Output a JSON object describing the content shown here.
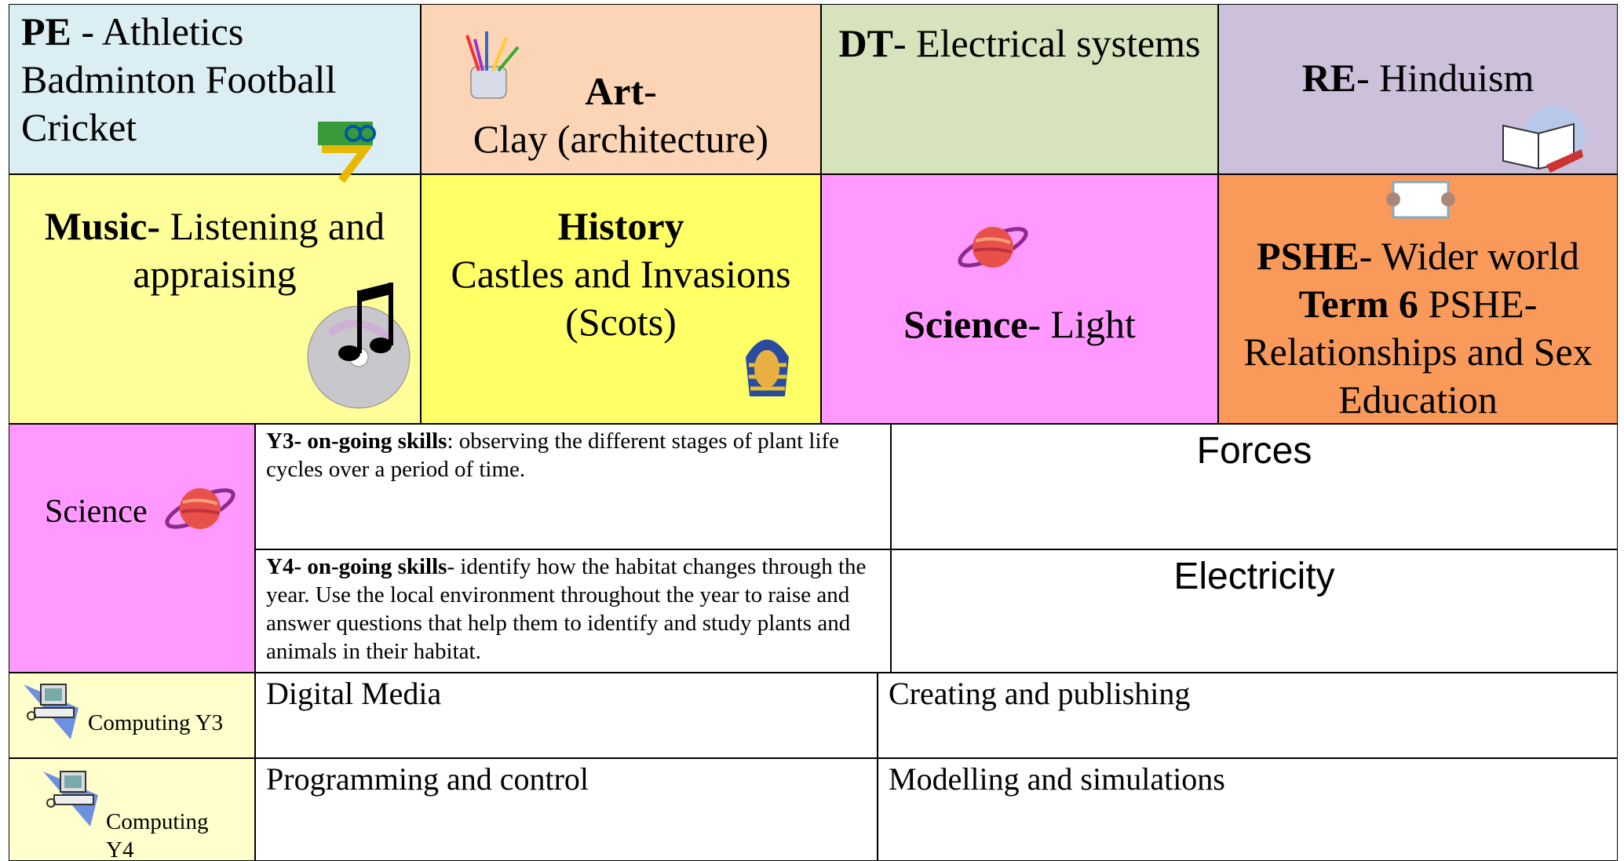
{
  "subjects": [
    {
      "parts": [
        {
          "text": "PE",
          "bold": true
        },
        {
          "text": " - Athletics Badminton Football Cricket",
          "bold": false
        }
      ]
    },
    {
      "parts": [
        {
          "text": "Art",
          "bold": true
        },
        {
          "text": "-",
          "bold": false
        },
        {
          "text": "Clay (architecture)",
          "bold": false
        }
      ]
    },
    {
      "parts": [
        {
          "text": "DT",
          "bold": true
        },
        {
          "text": "- Electrical systems",
          "bold": false
        }
      ]
    },
    {
      "parts": [
        {
          "text": "RE",
          "bold": true
        },
        {
          "text": "- Hinduism",
          "bold": false
        }
      ]
    },
    {
      "parts": [
        {
          "text": "Music-",
          "bold": true
        },
        {
          "text": " Listening and appraising",
          "bold": false
        }
      ]
    },
    {
      "parts": [
        {
          "text": "History",
          "bold": true
        },
        {
          "text": "Castles and Invasions (Scots)",
          "bold": false
        }
      ]
    },
    {
      "parts": [
        {
          "text": "Science",
          "bold": true
        },
        {
          "text": "- Light",
          "bold": false
        }
      ]
    },
    {
      "parts": [
        {
          "text": "PSHE",
          "bold": true
        },
        {
          "text": "- Wider world ",
          "bold": false
        },
        {
          "text": "Term 6",
          "bold": true
        },
        {
          "text": " PSHE- Relationships and Sex Education",
          "bold": false
        }
      ]
    }
  ],
  "science": {
    "label": "Science",
    "rows": [
      {
        "parts": [
          {
            "text": "Y3- on-going skills",
            "bold": true
          },
          {
            "text": ": observing the different stages of plant life cycles over a period of time.",
            "bold": false
          }
        ],
        "topic": "Forces"
      },
      {
        "parts": [
          {
            "text": "Y4- on-going skills",
            "bold": true
          },
          {
            "text": "- identify how the habitat changes through the year. Use the local environment throughout the year to raise and answer questions that help them to identify and study plants and animals in their habitat.",
            "bold": false
          }
        ],
        "topic": "Electricity"
      }
    ]
  },
  "computing": [
    {
      "label": "Computing Y3",
      "cells": [
        "Digital Media",
        "Creating and publishing"
      ]
    },
    {
      "label": "Computing Y4",
      "cells": [
        "Programming and control",
        "Modelling and simulations"
      ]
    }
  ]
}
